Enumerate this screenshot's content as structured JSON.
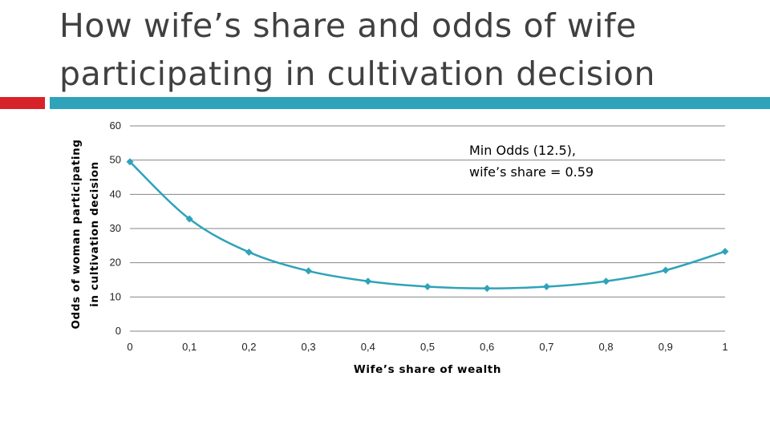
{
  "slide": {
    "title_line1": "How wife’s share and odds of wife",
    "title_line2": "participating in cultivation decision",
    "accent_red": "#d8222a",
    "accent_teal": "#2ea3b9"
  },
  "chart_data": {
    "type": "line",
    "x": [
      0,
      0.1,
      0.2,
      0.3,
      0.4,
      0.5,
      0.6,
      0.7,
      0.8,
      0.9,
      1
    ],
    "x_tick_labels": [
      "0",
      "0,1",
      "0,2",
      "0,3",
      "0,4",
      "0,5",
      "0,6",
      "0,7",
      "0,8",
      "0,9",
      "1"
    ],
    "series": [
      {
        "values": [
          49.5,
          32.8,
          23.1,
          17.6,
          14.6,
          13.0,
          12.5,
          13.0,
          14.6,
          17.8,
          23.3
        ],
        "color": "#2ea3b9",
        "marker": "diamond"
      }
    ],
    "xlim": [
      0,
      1
    ],
    "ylim": [
      0,
      60
    ],
    "y_ticks": [
      0,
      10,
      20,
      30,
      40,
      50,
      60
    ],
    "y_tick_labels": [
      "0",
      "10",
      "20",
      "30",
      "40",
      "50",
      "60"
    ],
    "xlabel": "Wife’s share of wealth",
    "ylabel_line1": "Odds of woman participating",
    "ylabel_line2": "in cultivation decision",
    "annotation_line1": "Min Odds (12.5),",
    "annotation_line2": "wife’s share = 0.59",
    "grid": "horizontal",
    "gridline_color": "#868686",
    "legend": "none"
  }
}
